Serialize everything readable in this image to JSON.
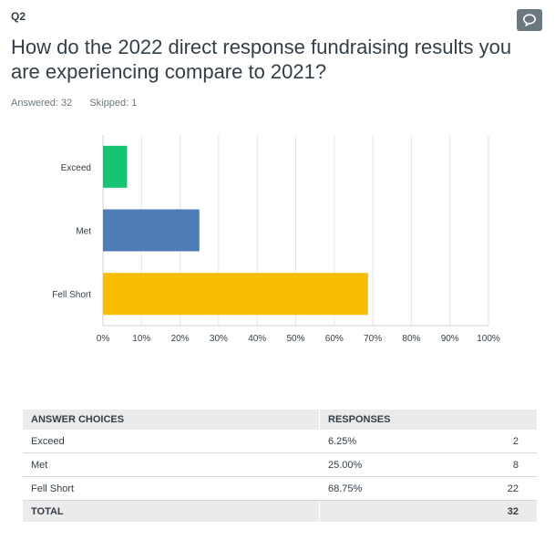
{
  "question": {
    "number": "Q2",
    "title": "How do the 2022 direct response fundraising results you are experiencing compare to 2021?",
    "answered": "Answered: 32",
    "skipped": "Skipped: 1",
    "comment_icon": "speech-bubble-icon"
  },
  "chart_data": {
    "type": "bar",
    "orientation": "horizontal",
    "categories": [
      "Exceed",
      "Met",
      "Fell Short"
    ],
    "values": [
      6.25,
      25.0,
      68.75
    ],
    "colors": [
      "#16c471",
      "#507cb6",
      "#f9be00"
    ],
    "xlim": [
      0,
      100
    ],
    "xticks": [
      "0%",
      "10%",
      "20%",
      "30%",
      "40%",
      "50%",
      "60%",
      "70%",
      "80%",
      "90%",
      "100%"
    ],
    "grid": true,
    "title": "",
    "xlabel": "",
    "ylabel": ""
  },
  "table": {
    "headers": [
      "ANSWER CHOICES",
      "RESPONSES",
      ""
    ],
    "rows": [
      {
        "choice": "Exceed",
        "percent": "6.25%",
        "count": "2"
      },
      {
        "choice": "Met",
        "percent": "25.00%",
        "count": "8"
      },
      {
        "choice": "Fell Short",
        "percent": "68.75%",
        "count": "22"
      }
    ],
    "total": {
      "label": "TOTAL",
      "count": "32"
    }
  }
}
